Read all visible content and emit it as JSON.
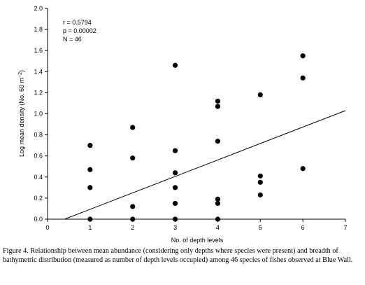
{
  "chart_data": {
    "type": "scatter",
    "xlabel": "No. of depth levels",
    "ylabel_main": "Log mean density (No. 60 m",
    "ylabel_sup": "−2",
    "ylabel_close": ")",
    "xlim": [
      0,
      7
    ],
    "ylim": [
      0,
      2.0
    ],
    "xticks": [
      0,
      1,
      2,
      3,
      4,
      5,
      6,
      7
    ],
    "yticks": [
      "0.0",
      "0.2",
      "0.4",
      "0.6",
      "0.8",
      "1.0",
      "1.2",
      "1.4",
      "1.6",
      "1.8",
      "2.0"
    ],
    "stats": [
      "r = 0.5794",
      "p = 0.00002",
      "N = 46"
    ],
    "points": [
      [
        1,
        0.0
      ],
      [
        1,
        0.3
      ],
      [
        1,
        0.47
      ],
      [
        1,
        0.7
      ],
      [
        2,
        0.0
      ],
      [
        2,
        0.12
      ],
      [
        2,
        0.58
      ],
      [
        2,
        0.87
      ],
      [
        3,
        0.0
      ],
      [
        3,
        0.15
      ],
      [
        3,
        0.3
      ],
      [
        3,
        0.44
      ],
      [
        3,
        0.65
      ],
      [
        3,
        1.46
      ],
      [
        4,
        0.0
      ],
      [
        4,
        0.15
      ],
      [
        4,
        0.19
      ],
      [
        4,
        0.74
      ],
      [
        4,
        1.07
      ],
      [
        4,
        1.12
      ],
      [
        5,
        0.23
      ],
      [
        5,
        0.35
      ],
      [
        5,
        0.41
      ],
      [
        5,
        1.18
      ],
      [
        6,
        0.48
      ],
      [
        6,
        1.34
      ],
      [
        6,
        1.55
      ]
    ],
    "regression_line": {
      "x": [
        0.4,
        7
      ],
      "y": [
        0.0,
        1.03
      ]
    },
    "grid": false,
    "legend": "none"
  },
  "caption": "Figure 4. Relationship between mean abundance (considering only depths where species were present) and breadth of bathymetric distribution (measured as number of depth levels occupied) among 46 species of fishes observed at Blue Wall."
}
